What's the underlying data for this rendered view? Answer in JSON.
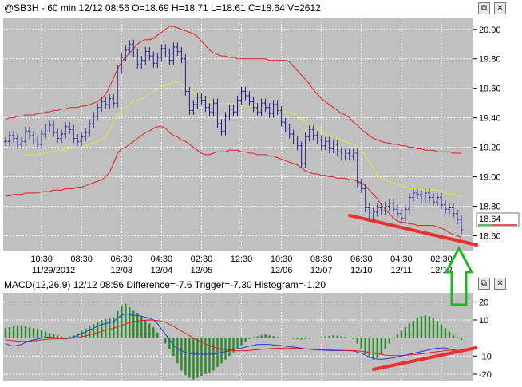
{
  "colors": {
    "panel_bg": "#c0c0c0",
    "grid": "#ffffff",
    "bars": "#1c1c8a",
    "bands": "#e02020",
    "midline": "#e6e640",
    "macd_line": "#1d3fd6",
    "trigger_line": "#e02020",
    "hist": "#2a8a2a",
    "annotation_red": "#e83030",
    "annotation_green": "#22b422",
    "price_marker_green": "#22aa22",
    "price_marker_red": "#d02020"
  },
  "window": {
    "restore_icon": "restore-icon",
    "close_icon": "close-icon",
    "restore_glyph": "⧉",
    "close_glyph": "✕"
  },
  "chart_data": [
    {
      "type": "line",
      "title": "@SB3H - 60 min 12/12 08:56 O=18.69 H=18.71 L=18.61 C=18.64 V=2612",
      "ylim": [
        18.5,
        20.08
      ],
      "y_ticks": [
        "20.00",
        "19.80",
        "19.60",
        "19.40",
        "19.20",
        "19.00",
        "18.80",
        "18.60"
      ],
      "y_tick_values": [
        20.0,
        19.8,
        19.6,
        19.4,
        19.2,
        19.0,
        18.8,
        18.6
      ],
      "x_time_labels": [
        "10:30",
        "08:30",
        "06:30",
        "04:30",
        "02:30",
        "12:30",
        "10:30",
        "08:30",
        "06:30",
        "04:30",
        "02:30"
      ],
      "x_date_labels": [
        "11/29/2012",
        "12/03",
        "12/04",
        "12/05",
        "12/06",
        "12/07",
        "12/10",
        "12/11",
        "12/12"
      ],
      "x_time_index": [
        9,
        19,
        29,
        39,
        49,
        59,
        69,
        79,
        89,
        99,
        109
      ],
      "x_date_index": [
        12,
        29,
        39,
        49,
        69,
        79,
        89,
        99,
        109
      ],
      "n_bars": 115,
      "last_price_label": "18.64",
      "last_price": 18.64,
      "close": [
        19.24,
        19.28,
        19.26,
        19.22,
        19.24,
        19.31,
        19.28,
        19.25,
        19.22,
        19.29,
        19.33,
        19.35,
        19.3,
        19.26,
        19.29,
        19.34,
        19.32,
        19.26,
        19.24,
        19.27,
        19.3,
        19.36,
        19.41,
        19.47,
        19.51,
        19.49,
        19.53,
        19.5,
        19.73,
        19.81,
        19.86,
        19.9,
        19.84,
        19.76,
        19.79,
        19.85,
        19.82,
        19.77,
        19.81,
        19.87,
        19.84,
        19.79,
        19.88,
        19.85,
        19.8,
        19.58,
        19.45,
        19.49,
        19.54,
        19.52,
        19.47,
        19.44,
        19.5,
        19.36,
        19.31,
        19.41,
        19.46,
        19.44,
        19.52,
        19.58,
        19.55,
        19.51,
        19.47,
        19.44,
        19.5,
        19.47,
        19.43,
        19.49,
        19.45,
        19.37,
        19.33,
        19.29,
        19.25,
        19.21,
        19.09,
        19.27,
        19.32,
        19.28,
        19.25,
        19.21,
        19.24,
        19.19,
        19.22,
        19.17,
        19.14,
        19.16,
        19.14,
        19.16,
        18.96,
        18.92,
        18.79,
        18.74,
        18.76,
        18.79,
        18.77,
        18.8,
        18.82,
        18.78,
        18.75,
        18.72,
        18.78,
        18.86,
        18.89,
        18.88,
        18.85,
        18.89,
        18.86,
        18.83,
        18.86,
        18.81,
        18.78,
        18.79,
        18.75,
        18.71,
        18.64
      ],
      "midline": [
        19.14,
        19.14,
        19.14,
        19.14,
        19.14,
        19.15,
        19.15,
        19.15,
        19.15,
        19.16,
        19.16,
        19.17,
        19.17,
        19.18,
        19.18,
        19.19,
        19.19,
        19.2,
        19.2,
        19.2,
        19.21,
        19.22,
        19.23,
        19.24,
        19.25,
        19.27,
        19.31,
        19.37,
        19.42,
        19.45,
        19.47,
        19.49,
        19.51,
        19.52,
        19.53,
        19.54,
        19.56,
        19.58,
        19.59,
        19.61,
        19.62,
        19.63,
        19.64,
        19.64,
        19.63,
        19.61,
        19.59,
        19.57,
        19.55,
        19.53,
        19.52,
        19.51,
        19.5,
        19.5,
        19.5,
        19.5,
        19.5,
        19.49,
        19.49,
        19.48,
        19.48,
        19.48,
        19.48,
        19.47,
        19.46,
        19.46,
        19.46,
        19.46,
        19.45,
        19.45,
        19.44,
        19.44,
        19.43,
        19.41,
        19.39,
        19.37,
        19.35,
        19.34,
        19.33,
        19.31,
        19.29,
        19.28,
        19.27,
        19.26,
        19.25,
        19.24,
        19.23,
        19.22,
        19.2,
        19.18,
        19.14,
        19.1,
        19.05,
        19.01,
        18.99,
        18.98,
        18.97,
        18.96,
        18.95,
        18.94,
        18.93,
        18.92,
        18.92,
        18.92,
        18.91,
        18.91,
        18.91,
        18.91,
        18.91,
        18.9,
        18.89,
        18.88,
        18.88,
        18.87,
        18.87
      ],
      "upper_band": [
        19.39,
        19.4,
        19.4,
        19.41,
        19.41,
        19.42,
        19.42,
        19.42,
        19.43,
        19.43,
        19.44,
        19.44,
        19.45,
        19.45,
        19.46,
        19.46,
        19.47,
        19.47,
        19.47,
        19.48,
        19.48,
        19.49,
        19.5,
        19.51,
        19.53,
        19.56,
        19.61,
        19.67,
        19.73,
        19.78,
        19.81,
        19.84,
        19.87,
        19.9,
        19.92,
        19.93,
        19.93,
        19.94,
        19.96,
        19.98,
        20.0,
        20.02,
        20.02,
        20.01,
        20.0,
        19.99,
        19.98,
        19.97,
        19.95,
        19.92,
        19.89,
        19.86,
        19.84,
        19.83,
        19.82,
        19.82,
        19.81,
        19.81,
        19.8,
        19.8,
        19.8,
        19.8,
        19.8,
        19.8,
        19.8,
        19.8,
        19.79,
        19.79,
        19.79,
        19.79,
        19.79,
        19.78,
        19.75,
        19.72,
        19.69,
        19.66,
        19.63,
        19.59,
        19.56,
        19.53,
        19.51,
        19.49,
        19.47,
        19.45,
        19.43,
        19.42,
        19.4,
        19.37,
        19.35,
        19.32,
        19.3,
        19.28,
        19.26,
        19.25,
        19.24,
        19.23,
        19.23,
        19.22,
        19.22,
        19.21,
        19.21,
        19.2,
        19.2,
        19.19,
        19.19,
        19.18,
        19.18,
        19.18,
        19.17,
        19.17,
        19.17,
        19.17,
        19.16,
        19.16,
        19.16
      ],
      "lower_band": [
        18.87,
        18.87,
        18.88,
        18.88,
        18.88,
        18.89,
        18.89,
        18.89,
        18.89,
        18.9,
        18.9,
        18.9,
        18.91,
        18.91,
        18.91,
        18.92,
        18.92,
        18.92,
        18.93,
        18.93,
        18.94,
        18.95,
        18.96,
        18.97,
        18.98,
        19.0,
        19.03,
        19.09,
        19.16,
        19.19,
        19.2,
        19.22,
        19.24,
        19.26,
        19.28,
        19.3,
        19.31,
        19.33,
        19.34,
        19.34,
        19.33,
        19.3,
        19.28,
        19.27,
        19.25,
        19.24,
        19.22,
        19.2,
        19.18,
        19.16,
        19.15,
        19.15,
        19.16,
        19.17,
        19.17,
        19.17,
        19.18,
        19.18,
        19.18,
        19.17,
        19.17,
        19.16,
        19.16,
        19.15,
        19.15,
        19.15,
        19.14,
        19.14,
        19.13,
        19.12,
        19.11,
        19.1,
        19.09,
        19.08,
        19.06,
        19.04,
        19.03,
        19.02,
        19.02,
        19.01,
        19.01,
        19.0,
        19.0,
        18.99,
        18.99,
        18.99,
        18.98,
        18.98,
        18.97,
        18.96,
        18.94,
        18.91,
        18.88,
        18.85,
        18.81,
        18.78,
        18.75,
        18.72,
        18.7,
        18.69,
        18.69,
        18.68,
        18.68,
        18.67,
        18.67,
        18.67,
        18.67,
        18.67,
        18.66,
        18.65,
        18.64,
        18.62,
        18.61,
        18.6,
        18.59
      ]
    },
    {
      "type": "bar",
      "title": "MACD(12,26,9) 12/12 08:56 Difference=-7.6 Trigger=-7.30 Histogram=-1.20",
      "ylim": [
        -24,
        25
      ],
      "y_ticks": [
        "20",
        "10",
        "-10",
        "-20"
      ],
      "y_tick_values": [
        20,
        10,
        -10,
        -20
      ],
      "histogram": [
        5.5,
        6,
        6.5,
        7,
        7,
        6.5,
        6,
        5.5,
        5,
        4.2,
        3.5,
        2.8,
        2.2,
        1.5,
        0.8,
        0.4,
        0.8,
        1.5,
        2.8,
        4,
        5.2,
        6.4,
        7.6,
        8.8,
        10,
        10.5,
        11,
        11.5,
        15,
        18,
        19,
        17,
        15,
        14,
        12,
        10,
        8,
        6,
        3,
        0,
        -3,
        -6,
        -10,
        -14,
        -18,
        -20.5,
        -22,
        -23,
        -22,
        -21,
        -20,
        -19,
        -18,
        -16,
        -14,
        -12,
        -10,
        -8,
        -6,
        -4,
        -2,
        -0.5,
        0.5,
        1,
        1.5,
        2,
        1.5,
        1,
        0.6,
        0.3,
        0,
        -0.2,
        -0.4,
        -0.6,
        -0.8,
        -0.6,
        -0.4,
        -0.2,
        0.3,
        0.6,
        0.9,
        1.2,
        1.5,
        1.2,
        0.9,
        0.6,
        0.2,
        -0.5,
        -3,
        -6,
        -9,
        -11,
        -12,
        -11,
        -9,
        -6,
        -3,
        0,
        2,
        4,
        6,
        8,
        9.5,
        11,
        12,
        12.5,
        12,
        11,
        9.5,
        7.5,
        5.5,
        3.5,
        1.5,
        0.5,
        -1.2
      ],
      "macd": [
        -3,
        -4,
        -4.5,
        -4,
        -3.5,
        -2.5,
        -1.5,
        -1,
        -0.5,
        0,
        0.5,
        0.5,
        0.3,
        0,
        -0.3,
        -0.5,
        0,
        0.5,
        1.5,
        2.5,
        3.5,
        4.5,
        5.5,
        6.5,
        7.5,
        8,
        8.5,
        9,
        11,
        12.5,
        13.5,
        13,
        12.5,
        12.5,
        12,
        11.5,
        11,
        10,
        8,
        5,
        2,
        -1,
        -4,
        -6,
        -7,
        -8,
        -8.5,
        -9,
        -9,
        -9,
        -9,
        -9,
        -9,
        -8.5,
        -8,
        -7.5,
        -7,
        -6.5,
        -6,
        -5.5,
        -5,
        -4.5,
        -4,
        -3.5,
        -3.5,
        -3.5,
        -3.5,
        -3.8,
        -4,
        -4.2,
        -4.5,
        -4.8,
        -5,
        -5.3,
        -5.6,
        -6,
        -6.2,
        -6.5,
        -6.6,
        -6.7,
        -6.8,
        -6.9,
        -7,
        -7,
        -7,
        -7,
        -7,
        -7.2,
        -7.8,
        -8.5,
        -9.5,
        -10.5,
        -11.3,
        -11.7,
        -11.8,
        -11.6,
        -11.3,
        -11,
        -10.5,
        -10,
        -9.5,
        -9,
        -8.5,
        -8,
        -7.5,
        -7,
        -6.5,
        -6,
        -5.7,
        -5.5,
        -5.5,
        -6,
        -6.5,
        -7,
        -7.6
      ],
      "trigger": [
        -1,
        -1.2,
        -1.5,
        -1.7,
        -1.8,
        -1.8,
        -1.7,
        -1.5,
        -1.3,
        -1,
        -0.8,
        -0.6,
        -0.5,
        -0.4,
        -0.3,
        -0.2,
        -0.1,
        0,
        0.3,
        0.7,
        1.2,
        1.8,
        2.4,
        3,
        3.6,
        4.2,
        4.8,
        5.4,
        6.2,
        7,
        7.8,
        8.5,
        9,
        9.4,
        9.7,
        9.9,
        10,
        9.9,
        9.7,
        9.3,
        8.6,
        7.6,
        6.5,
        5.2,
        3.9,
        2.6,
        1.3,
        0,
        -1.2,
        -2.3,
        -3.3,
        -4.2,
        -5,
        -5.6,
        -6.1,
        -6.5,
        -6.8,
        -7,
        -7.1,
        -7.1,
        -7,
        -6.9,
        -6.7,
        -6.5,
        -6.3,
        -6.1,
        -5.9,
        -5.8,
        -5.7,
        -5.6,
        -5.6,
        -5.6,
        -5.7,
        -5.8,
        -5.9,
        -6,
        -6.1,
        -6.2,
        -6.3,
        -6.4,
        -6.5,
        -6.6,
        -6.7,
        -6.8,
        -6.8,
        -6.9,
        -6.9,
        -7,
        -7.1,
        -7.3,
        -7.6,
        -8,
        -8.4,
        -8.8,
        -9.2,
        -9.5,
        -9.7,
        -9.8,
        -9.8,
        -9.7,
        -9.6,
        -9.4,
        -9.2,
        -9,
        -8.8,
        -8.5,
        -8.2,
        -7.9,
        -7.6,
        -7.3,
        -7,
        -6.8,
        -6.8,
        -7,
        -7.3
      ]
    }
  ]
}
